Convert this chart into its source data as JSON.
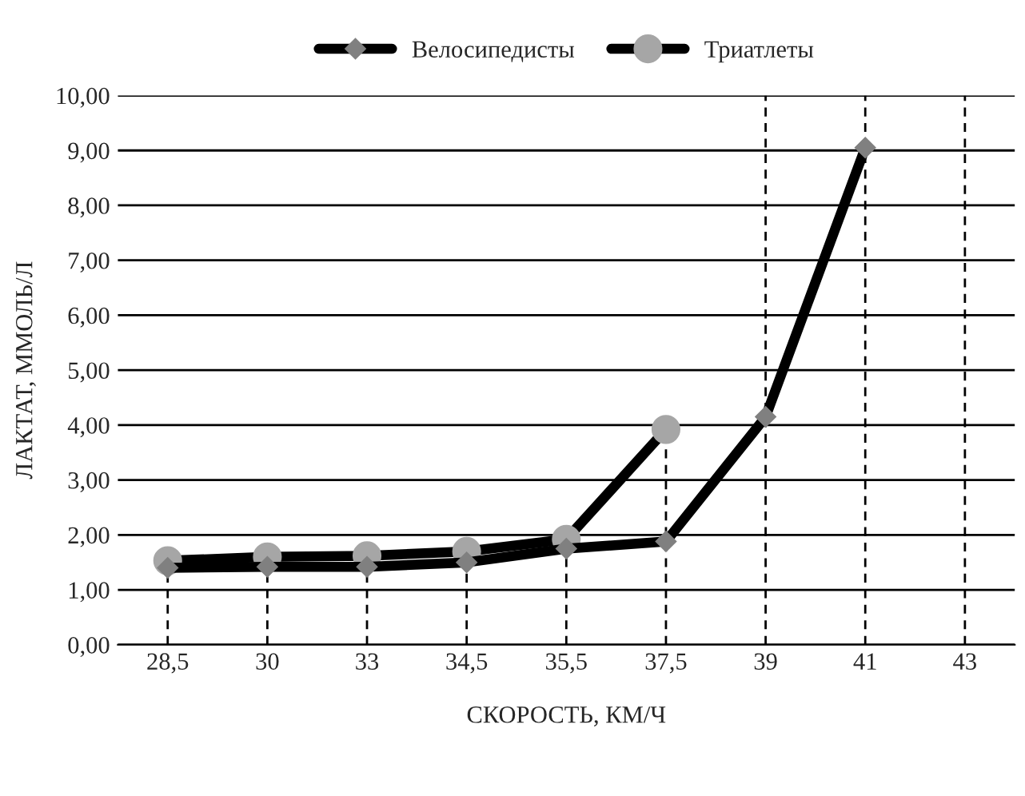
{
  "chart_data": {
    "type": "line",
    "xlabel": "СКОРОСТЬ, КМ/Ч",
    "ylabel": "ЛАКТАТ, ММОЛЬ/Л",
    "categories": [
      "28,5",
      "30",
      "33",
      "34,5",
      "35,5",
      "37,5",
      "39",
      "41",
      "43"
    ],
    "series": [
      {
        "name": "Велосипедисты",
        "color": "#000000",
        "marker": "diamond",
        "values": [
          1.4,
          1.42,
          1.42,
          1.5,
          1.75,
          1.88,
          4.15,
          9.05,
          null
        ]
      },
      {
        "name": "Триатлеты",
        "color": "#000000",
        "marker": "circle",
        "values": [
          1.53,
          1.6,
          1.62,
          1.7,
          1.92,
          3.92,
          null,
          null,
          null
        ]
      }
    ],
    "ref_lines": [
      {
        "axis": "x",
        "value": "28,5",
        "line_style": "dashed",
        "color": "#000000"
      },
      {
        "axis": "x",
        "value": "30",
        "line_style": "dashed",
        "color": "#000000"
      },
      {
        "axis": "x",
        "value": "33",
        "line_style": "dashed",
        "color": "#000000"
      },
      {
        "axis": "x",
        "value": "34,5",
        "line_style": "dashed",
        "color": "#000000"
      },
      {
        "axis": "x",
        "value": "35,5",
        "line_style": "dashed",
        "color": "#000000"
      },
      {
        "axis": "x",
        "value": "37,5",
        "line_style": "dashed",
        "color": "#000000"
      },
      {
        "axis": "x",
        "value": "39",
        "line_style": "dashed",
        "color": "#000000"
      },
      {
        "axis": "x",
        "value": "41",
        "line_style": "dashed",
        "color": "#000000"
      },
      {
        "axis": "x",
        "value": "43",
        "line_style": "dashed",
        "color": "#000000"
      }
    ],
    "ylim": [
      0,
      10
    ],
    "yticks": [
      {
        "value": 0,
        "label": "0,00"
      },
      {
        "value": 1,
        "label": "1,00"
      },
      {
        "value": 2,
        "label": "2,00"
      },
      {
        "value": 3,
        "label": "3,00"
      },
      {
        "value": 4,
        "label": "4,00"
      },
      {
        "value": 5,
        "label": "5,00"
      },
      {
        "value": 6,
        "label": "6,00"
      },
      {
        "value": 7,
        "label": "7,00"
      },
      {
        "value": 8,
        "label": "8,00"
      },
      {
        "value": 9,
        "label": "9,00"
      },
      {
        "value": 10,
        "label": "10,00"
      }
    ],
    "grid": "y",
    "legend": "top",
    "line_style": "solid"
  }
}
